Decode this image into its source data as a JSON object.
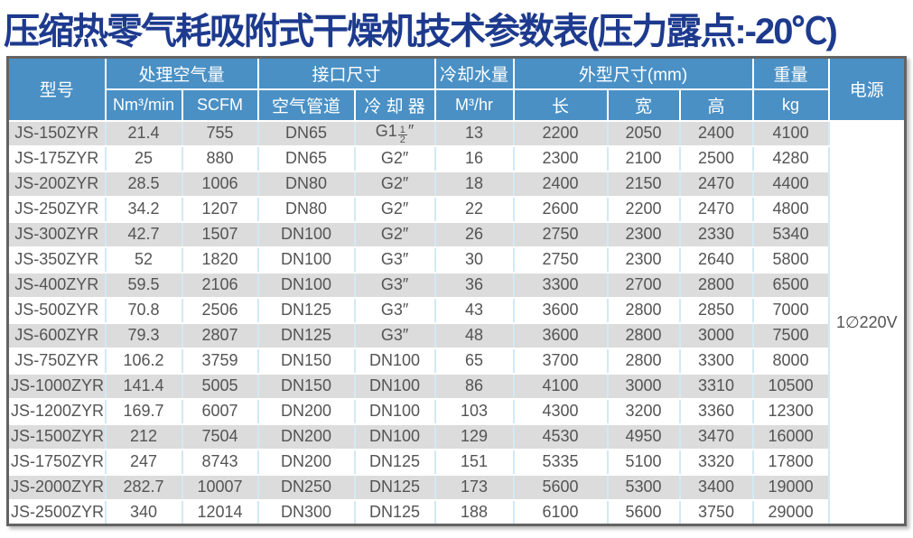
{
  "title": "压缩热零气耗吸附式干燥机技术参数表(压力露点:-20℃)",
  "colors": {
    "title_text": "#1d3a8e",
    "header_bg": "#4a90c5",
    "header_text": "#ffffff",
    "row_alt_bg": "#dcdcdc",
    "body_text": "#545454",
    "grid_line": "#d2e9f6",
    "outer_border": "#636363"
  },
  "table": {
    "header": {
      "model": "型号",
      "air_capacity": "处理空气量",
      "interface_size": "接口尺寸",
      "cooling_water": "冷却水量",
      "dimensions": "外型尺寸(mm)",
      "weight": "重量",
      "power": "电源",
      "sub": [
        "Nm³/min",
        "SCFM",
        "空气管道",
        "冷 却 器",
        "M³/hr",
        "长",
        "宽",
        "高",
        "kg"
      ]
    },
    "power_value": "1∅220V",
    "rows": [
      [
        "JS-150ZYR",
        "21.4",
        "755",
        "DN65",
        "G1½″",
        "13",
        "2200",
        "2050",
        "2400",
        "4100"
      ],
      [
        "JS-175ZYR",
        "25",
        "880",
        "DN65",
        "G2″",
        "16",
        "2300",
        "2100",
        "2500",
        "4280"
      ],
      [
        "JS-200ZYR",
        "28.5",
        "1006",
        "DN80",
        "G2″",
        "18",
        "2400",
        "2150",
        "2470",
        "4400"
      ],
      [
        "JS-250ZYR",
        "34.2",
        "1207",
        "DN80",
        "G2″",
        "22",
        "2600",
        "2200",
        "2470",
        "4800"
      ],
      [
        "JS-300ZYR",
        "42.7",
        "1507",
        "DN100",
        "G2″",
        "26",
        "2750",
        "2300",
        "2330",
        "5340"
      ],
      [
        "JS-350ZYR",
        "52",
        "1820",
        "DN100",
        "G3″",
        "30",
        "2750",
        "2300",
        "2640",
        "5800"
      ],
      [
        "JS-400ZYR",
        "59.5",
        "2106",
        "DN100",
        "G3″",
        "36",
        "3300",
        "2700",
        "2800",
        "6500"
      ],
      [
        "JS-500ZYR",
        "70.8",
        "2506",
        "DN125",
        "G3″",
        "43",
        "3600",
        "2800",
        "2850",
        "7000"
      ],
      [
        "JS-600ZYR",
        "79.3",
        "2807",
        "DN125",
        "G3″",
        "48",
        "3600",
        "2800",
        "3000",
        "7500"
      ],
      [
        "JS-750ZYR",
        "106.2",
        "3759",
        "DN150",
        "DN100",
        "65",
        "3700",
        "2800",
        "3300",
        "8000"
      ],
      [
        "JS-1000ZYR",
        "141.4",
        "5005",
        "DN150",
        "DN100",
        "86",
        "4100",
        "3000",
        "3310",
        "10500"
      ],
      [
        "JS-1200ZYR",
        "169.7",
        "6007",
        "DN200",
        "DN100",
        "103",
        "4300",
        "3200",
        "3360",
        "12300"
      ],
      [
        "JS-1500ZYR",
        "212",
        "7504",
        "DN200",
        "DN100",
        "129",
        "4530",
        "4950",
        "3470",
        "16000"
      ],
      [
        "JS-1750ZYR",
        "247",
        "8743",
        "DN200",
        "DN125",
        "151",
        "5335",
        "5100",
        "3320",
        "17800"
      ],
      [
        "JS-2000ZYR",
        "282.7",
        "10007",
        "DN250",
        "DN125",
        "173",
        "5600",
        "5300",
        "3400",
        "19000"
      ],
      [
        "JS-2500ZYR",
        "340",
        "12014",
        "DN300",
        "DN125",
        "188",
        "6100",
        "5600",
        "3750",
        "29000"
      ]
    ]
  }
}
